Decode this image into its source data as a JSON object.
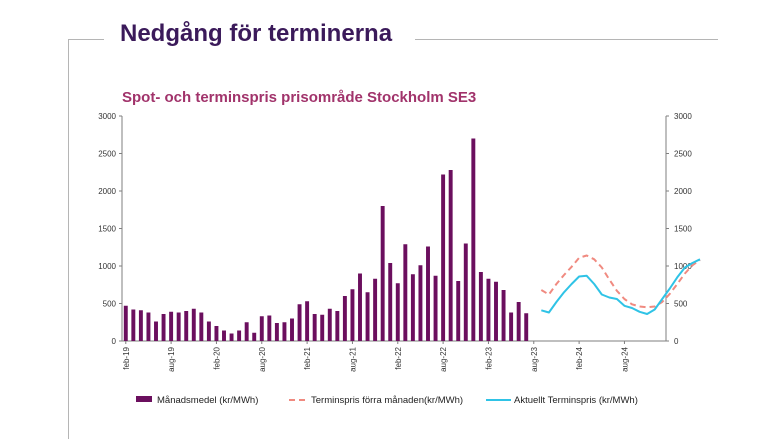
{
  "slide": {
    "title": "Nedgång för terminerna"
  },
  "colors": {
    "bars": "#6b0f5e",
    "forward_prev": "#f08a80",
    "forward_current": "#2fc3e6",
    "title": "#3b1a5a",
    "chart_title": "#a1336b"
  },
  "chart_data": {
    "type": "bar",
    "title": "Spot- och terminspris prisområde Stockholm SE3",
    "xlabel": "",
    "ylabel": "",
    "ylim": [
      0,
      3000
    ],
    "yticks": [
      "0",
      "500",
      "1000",
      "1500",
      "2000",
      "2500",
      "3000"
    ],
    "y2ticks": [
      "0",
      "500",
      "1000",
      "1500",
      "2000",
      "2500",
      "3000"
    ],
    "xticks": [
      {
        "label": "feb-19",
        "index": 0
      },
      {
        "label": "aug-19",
        "index": 6
      },
      {
        "label": "feb-20",
        "index": 12
      },
      {
        "label": "aug-20",
        "index": 18
      },
      {
        "label": "feb-21",
        "index": 24
      },
      {
        "label": "aug-21",
        "index": 30
      },
      {
        "label": "feb-22",
        "index": 36
      },
      {
        "label": "aug-22",
        "index": 42
      },
      {
        "label": "feb-23",
        "index": 48
      },
      {
        "label": "aug-23",
        "index": 54
      },
      {
        "label": "feb-24",
        "index": 60
      },
      {
        "label": "aug-24",
        "index": 66
      }
    ],
    "month_count": 72,
    "grid": false,
    "legend_position": "bottom",
    "series": [
      {
        "name": "Månadsmedel (kr/MWh)",
        "kind": "bar",
        "start_index": 0,
        "values": [
          470,
          420,
          410,
          380,
          260,
          360,
          390,
          380,
          400,
          430,
          380,
          260,
          200,
          140,
          100,
          140,
          250,
          110,
          330,
          340,
          240,
          250,
          300,
          490,
          530,
          360,
          350,
          430,
          400,
          600,
          690,
          900,
          650,
          830,
          1800,
          1040,
          770,
          1290,
          890,
          1010,
          1260,
          870,
          2220,
          2280,
          800,
          1300,
          2700,
          920,
          830,
          790,
          680,
          380,
          520,
          370
        ]
      },
      {
        "name": "Terminspris förra månaden(kr/MWh)",
        "kind": "line-dashed",
        "start_index": 55,
        "values": [
          680,
          620,
          760,
          880,
          990,
          1110,
          1140,
          1090,
          980,
          820,
          670,
          560,
          490,
          460,
          450,
          460,
          520,
          630,
          760,
          900,
          1010,
          1080
        ]
      },
      {
        "name": "Aktuellt Terminspris (kr/MWh)",
        "kind": "line",
        "start_index": 55,
        "values": [
          410,
          380,
          520,
          650,
          760,
          860,
          870,
          760,
          620,
          580,
          560,
          470,
          440,
          390,
          360,
          420,
          560,
          700,
          850,
          980,
          1040,
          1090
        ]
      }
    ]
  }
}
